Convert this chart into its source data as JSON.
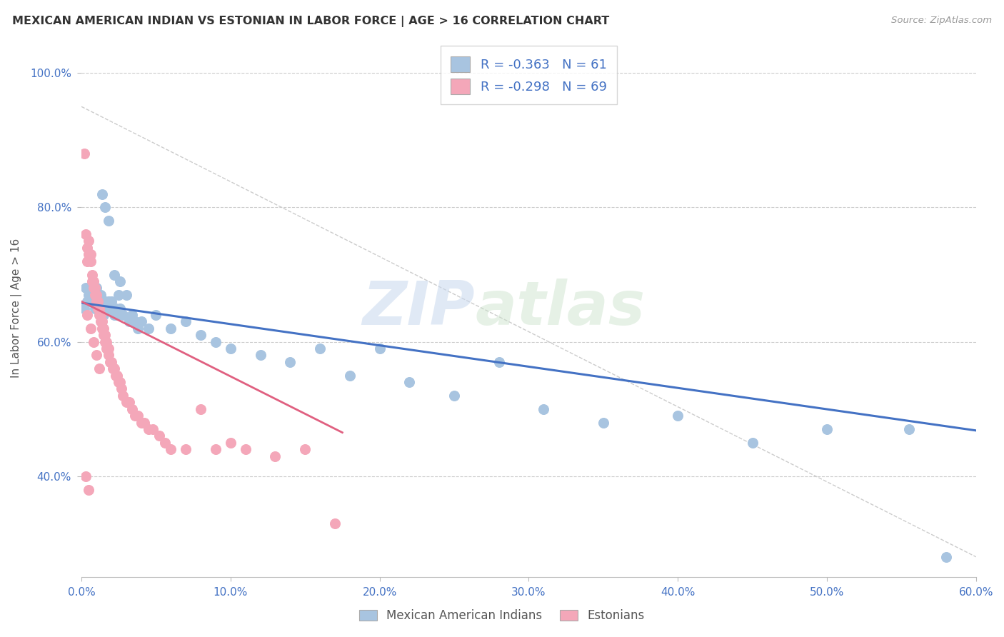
{
  "title": "MEXICAN AMERICAN INDIAN VS ESTONIAN IN LABOR FORCE | AGE > 16 CORRELATION CHART",
  "source": "Source: ZipAtlas.com",
  "ylabel": "In Labor Force | Age > 16",
  "xlim": [
    0.0,
    0.6
  ],
  "ylim": [
    0.25,
    1.05
  ],
  "x_tick_labels": [
    "0.0%",
    "10.0%",
    "20.0%",
    "30.0%",
    "40.0%",
    "50.0%",
    "60.0%"
  ],
  "x_tick_vals": [
    0.0,
    0.1,
    0.2,
    0.3,
    0.4,
    0.5,
    0.6
  ],
  "y_tick_labels": [
    "40.0%",
    "60.0%",
    "80.0%",
    "100.0%"
  ],
  "y_tick_vals": [
    0.4,
    0.6,
    0.8,
    1.0
  ],
  "blue_color": "#a8c4e0",
  "pink_color": "#f4a7b9",
  "blue_line_color": "#4472c4",
  "pink_line_color": "#e06080",
  "diag_line_color": "#cccccc",
  "r_blue": -0.363,
  "n_blue": 61,
  "r_pink": -0.298,
  "n_pink": 69,
  "watermark_zip": "ZIP",
  "watermark_atlas": "atlas",
  "blue_scatter_x": [
    0.002,
    0.003,
    0.004,
    0.005,
    0.005,
    0.006,
    0.007,
    0.008,
    0.009,
    0.01,
    0.01,
    0.011,
    0.012,
    0.013,
    0.014,
    0.015,
    0.016,
    0.017,
    0.018,
    0.019,
    0.02,
    0.021,
    0.022,
    0.023,
    0.024,
    0.025,
    0.026,
    0.028,
    0.03,
    0.032,
    0.034,
    0.036,
    0.038,
    0.04,
    0.045,
    0.05,
    0.06,
    0.07,
    0.08,
    0.09,
    0.1,
    0.12,
    0.14,
    0.16,
    0.18,
    0.2,
    0.22,
    0.25,
    0.28,
    0.31,
    0.35,
    0.4,
    0.45,
    0.5,
    0.555,
    0.014,
    0.016,
    0.018,
    0.022,
    0.026,
    0.58
  ],
  "blue_scatter_y": [
    0.65,
    0.68,
    0.66,
    0.67,
    0.66,
    0.68,
    0.66,
    0.67,
    0.65,
    0.66,
    0.68,
    0.65,
    0.66,
    0.67,
    0.65,
    0.64,
    0.66,
    0.65,
    0.66,
    0.65,
    0.66,
    0.65,
    0.64,
    0.65,
    0.64,
    0.67,
    0.65,
    0.64,
    0.67,
    0.63,
    0.64,
    0.63,
    0.62,
    0.63,
    0.62,
    0.64,
    0.62,
    0.63,
    0.61,
    0.6,
    0.59,
    0.58,
    0.57,
    0.59,
    0.55,
    0.59,
    0.54,
    0.52,
    0.57,
    0.5,
    0.48,
    0.49,
    0.45,
    0.47,
    0.47,
    0.82,
    0.8,
    0.78,
    0.7,
    0.69,
    0.28
  ],
  "pink_scatter_x": [
    0.002,
    0.003,
    0.004,
    0.004,
    0.005,
    0.005,
    0.006,
    0.006,
    0.007,
    0.007,
    0.008,
    0.008,
    0.009,
    0.009,
    0.01,
    0.01,
    0.011,
    0.011,
    0.012,
    0.012,
    0.013,
    0.013,
    0.014,
    0.014,
    0.015,
    0.015,
    0.016,
    0.016,
    0.017,
    0.017,
    0.018,
    0.018,
    0.019,
    0.02,
    0.021,
    0.022,
    0.023,
    0.024,
    0.025,
    0.026,
    0.027,
    0.028,
    0.03,
    0.032,
    0.034,
    0.036,
    0.038,
    0.04,
    0.042,
    0.045,
    0.048,
    0.052,
    0.056,
    0.06,
    0.07,
    0.08,
    0.09,
    0.1,
    0.11,
    0.13,
    0.15,
    0.17,
    0.004,
    0.006,
    0.008,
    0.01,
    0.012,
    0.003,
    0.005
  ],
  "pink_scatter_y": [
    0.88,
    0.76,
    0.74,
    0.72,
    0.75,
    0.73,
    0.73,
    0.72,
    0.7,
    0.69,
    0.69,
    0.68,
    0.68,
    0.67,
    0.67,
    0.66,
    0.66,
    0.65,
    0.65,
    0.64,
    0.64,
    0.63,
    0.63,
    0.62,
    0.62,
    0.61,
    0.61,
    0.6,
    0.6,
    0.59,
    0.59,
    0.58,
    0.57,
    0.57,
    0.56,
    0.56,
    0.55,
    0.55,
    0.54,
    0.54,
    0.53,
    0.52,
    0.51,
    0.51,
    0.5,
    0.49,
    0.49,
    0.48,
    0.48,
    0.47,
    0.47,
    0.46,
    0.45,
    0.44,
    0.44,
    0.5,
    0.44,
    0.45,
    0.44,
    0.43,
    0.44,
    0.33,
    0.64,
    0.62,
    0.6,
    0.58,
    0.56,
    0.4,
    0.38
  ],
  "blue_trend_x": [
    0.0,
    0.6
  ],
  "blue_trend_y": [
    0.658,
    0.468
  ],
  "pink_trend_x": [
    0.0,
    0.175
  ],
  "pink_trend_y": [
    0.66,
    0.465
  ]
}
